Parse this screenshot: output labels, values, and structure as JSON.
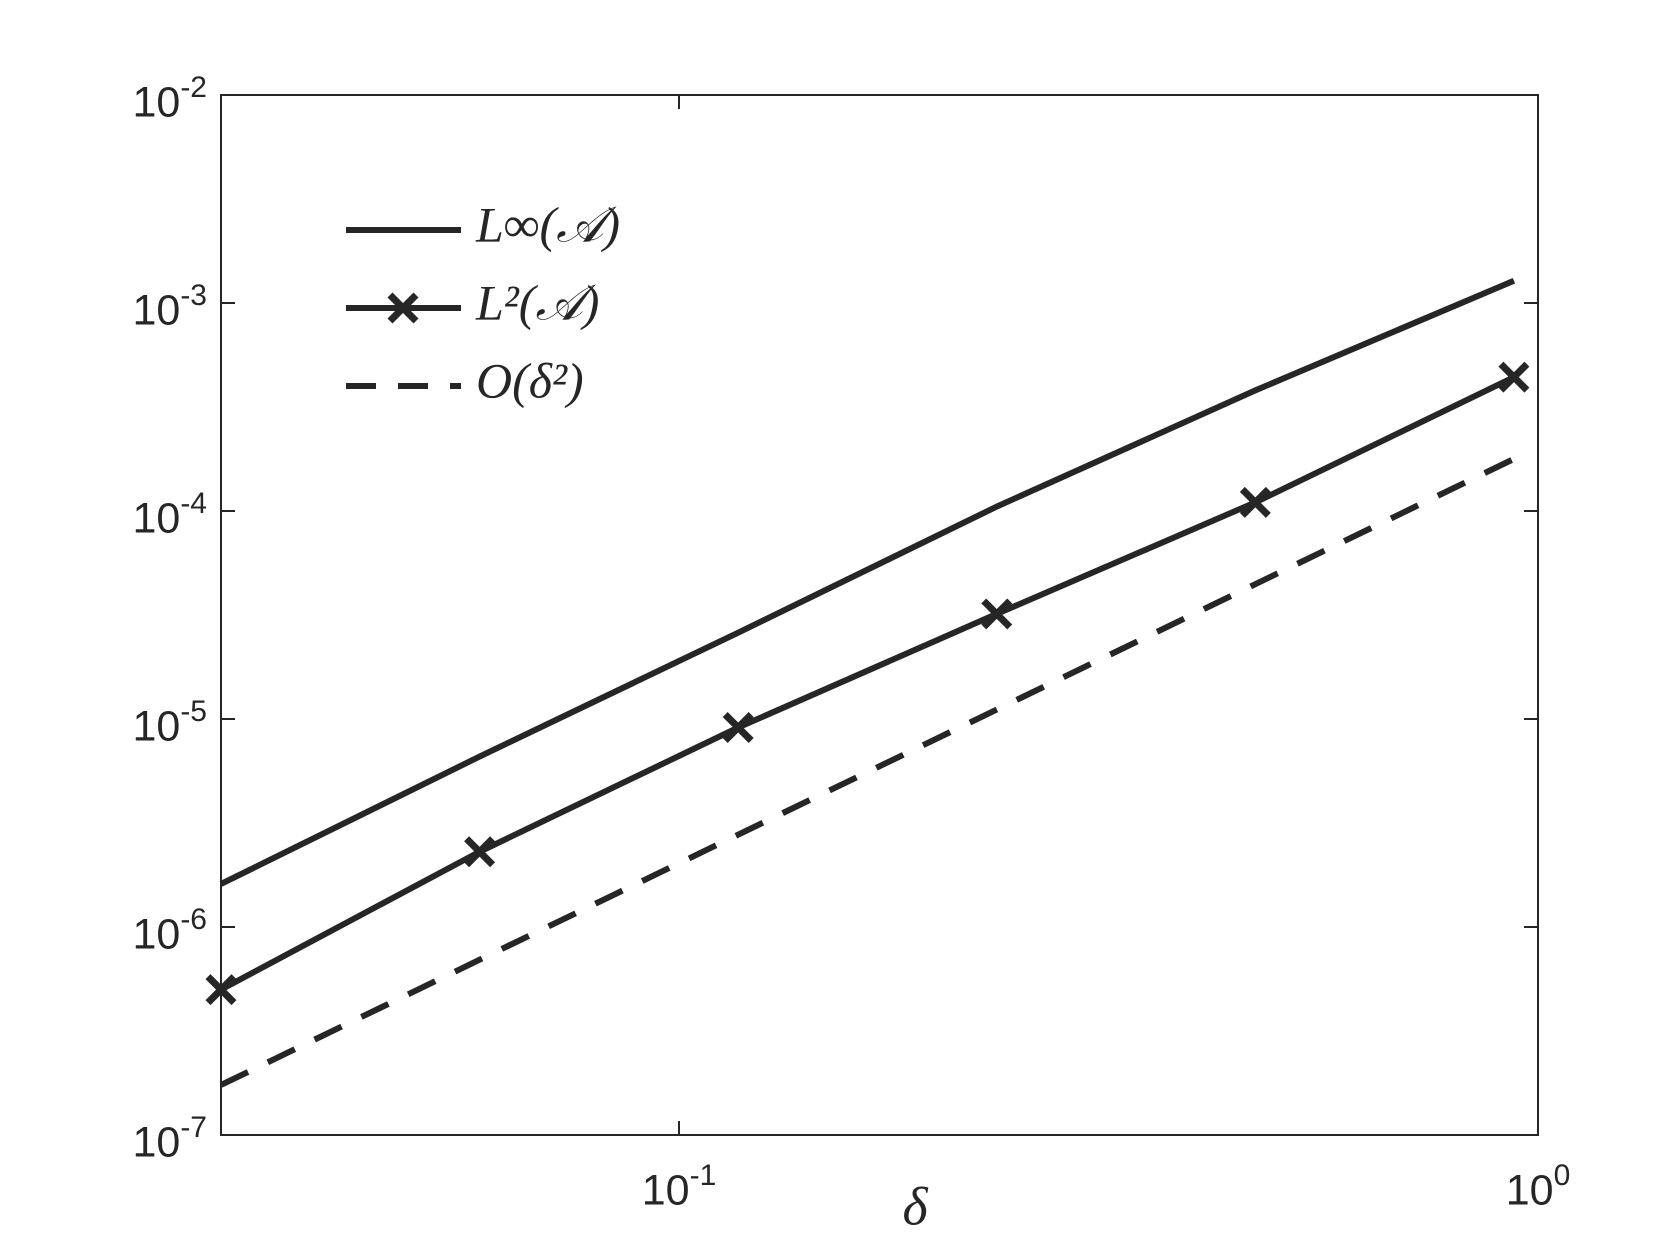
{
  "chart_data": {
    "type": "line",
    "xlabel": "δ",
    "x": [
      0.029296875,
      0.05859375,
      0.1171875,
      0.234375,
      0.46875,
      0.9375
    ],
    "series": [
      {
        "name": "L∞(𝒜)",
        "color": "#262626",
        "linestyle": "solid",
        "marker": "none",
        "values": [
          1.61e-06,
          6.6e-06,
          2.6e-05,
          0.000105,
          0.00038,
          0.00128
        ]
      },
      {
        "name": "L²(𝒜)",
        "color": "#262626",
        "linestyle": "solid",
        "marker": "x",
        "values": [
          5e-07,
          2.3e-06,
          9.1e-06,
          3.2e-05,
          0.00011,
          0.00044
        ]
      },
      {
        "name": "O(δ²)",
        "color": "#262626",
        "linestyle": "dashed",
        "marker": "none",
        "values": [
          1.74e-07,
          6.96e-07,
          2.78e-06,
          1.11e-05,
          4.45e-05,
          0.000178
        ]
      }
    ],
    "xscale": "log",
    "yscale": "log",
    "xlim": [
      0.029296875,
      1
    ],
    "ylim": [
      1e-07,
      0.01
    ],
    "xticks": [
      {
        "value": 0.1,
        "label": "10-1"
      },
      {
        "value": 1,
        "label": "100"
      }
    ],
    "yticks": [
      {
        "value": 1e-07,
        "label": "10-7"
      },
      {
        "value": 1e-06,
        "label": "10-6"
      },
      {
        "value": 1e-05,
        "label": "10-5"
      },
      {
        "value": 0.0001,
        "label": "10-4"
      },
      {
        "value": 0.001,
        "label": "10-3"
      },
      {
        "value": 0.01,
        "label": "10-2"
      }
    ],
    "grid": false,
    "legend": "upper left"
  }
}
